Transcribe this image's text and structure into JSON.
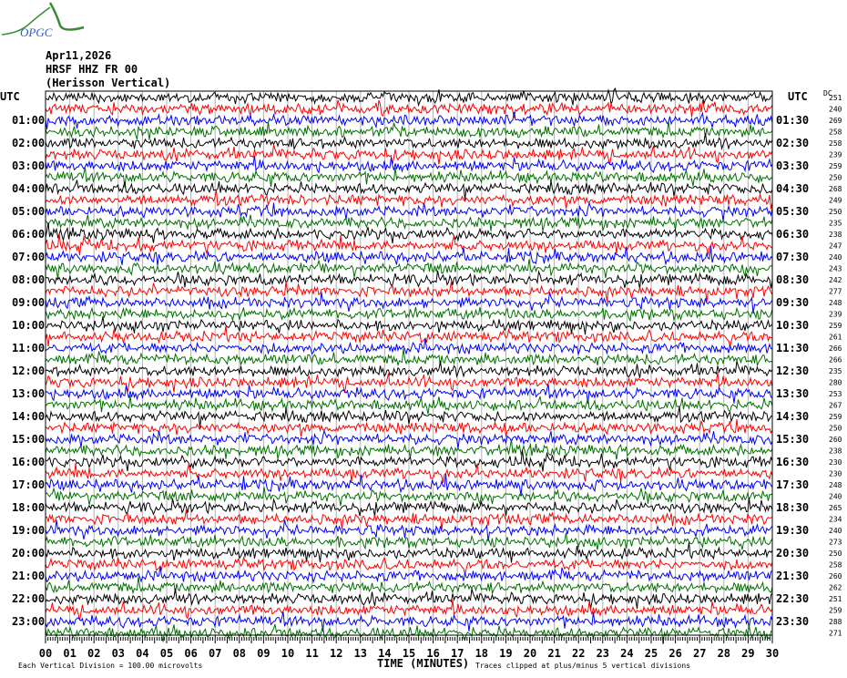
{
  "logo_text": "OPGC",
  "header": {
    "date": "Apr11,2026",
    "station": "HRSF HHZ FR 00",
    "description": "(Herisson Vertical)"
  },
  "utc_left": "UTC",
  "utc_right": "UTC",
  "dc_label": "DC",
  "left_hours": [
    "01:00",
    "02:00",
    "03:00",
    "04:00",
    "05:00",
    "06:00",
    "07:00",
    "08:00",
    "09:00",
    "10:00",
    "11:00",
    "12:00",
    "13:00",
    "14:00",
    "15:00",
    "16:00",
    "17:00",
    "18:00",
    "19:00",
    "20:00",
    "21:00",
    "22:00",
    "23:00"
  ],
  "right_hours": [
    "01:30",
    "02:30",
    "03:30",
    "04:30",
    "05:30",
    "06:30",
    "07:30",
    "08:30",
    "09:30",
    "10:30",
    "11:30",
    "12:30",
    "13:30",
    "14:30",
    "15:30",
    "16:30",
    "17:30",
    "18:30",
    "19:30",
    "20:30",
    "21:30",
    "22:30",
    "23:30"
  ],
  "footer": {
    "scale": "Each Vertical Division =  100.00 microvolts",
    "xlabel": "TIME (MINUTES)",
    "clip_note": "Traces clipped at plus/minus 5 vertical divisions"
  },
  "chart_data": {
    "type": "line",
    "xlabel": "TIME (MINUTES)",
    "xlim": [
      0,
      30
    ],
    "x_ticks": [
      "00",
      "01",
      "02",
      "03",
      "04",
      "05",
      "06",
      "07",
      "08",
      "09",
      "10",
      "11",
      "12",
      "13",
      "14",
      "15",
      "16",
      "17",
      "18",
      "19",
      "20",
      "21",
      "22",
      "23",
      "24",
      "25",
      "26",
      "27",
      "28",
      "29",
      "30"
    ],
    "trace_colors": [
      "#000000",
      "#ff0000",
      "#0000ff",
      "#007000"
    ],
    "grid": true,
    "dc_offsets": [
      251,
      240,
      269,
      258,
      258,
      239,
      259,
      250,
      268,
      249,
      250,
      235,
      238,
      247,
      240,
      243,
      242,
      277,
      248,
      239,
      259,
      261,
      266,
      266,
      235,
      280,
      253,
      267,
      259,
      250,
      260,
      238,
      230,
      230,
      248,
      240,
      265,
      234,
      240,
      273,
      250,
      258,
      260,
      262,
      251,
      259,
      288,
      271
    ]
  }
}
